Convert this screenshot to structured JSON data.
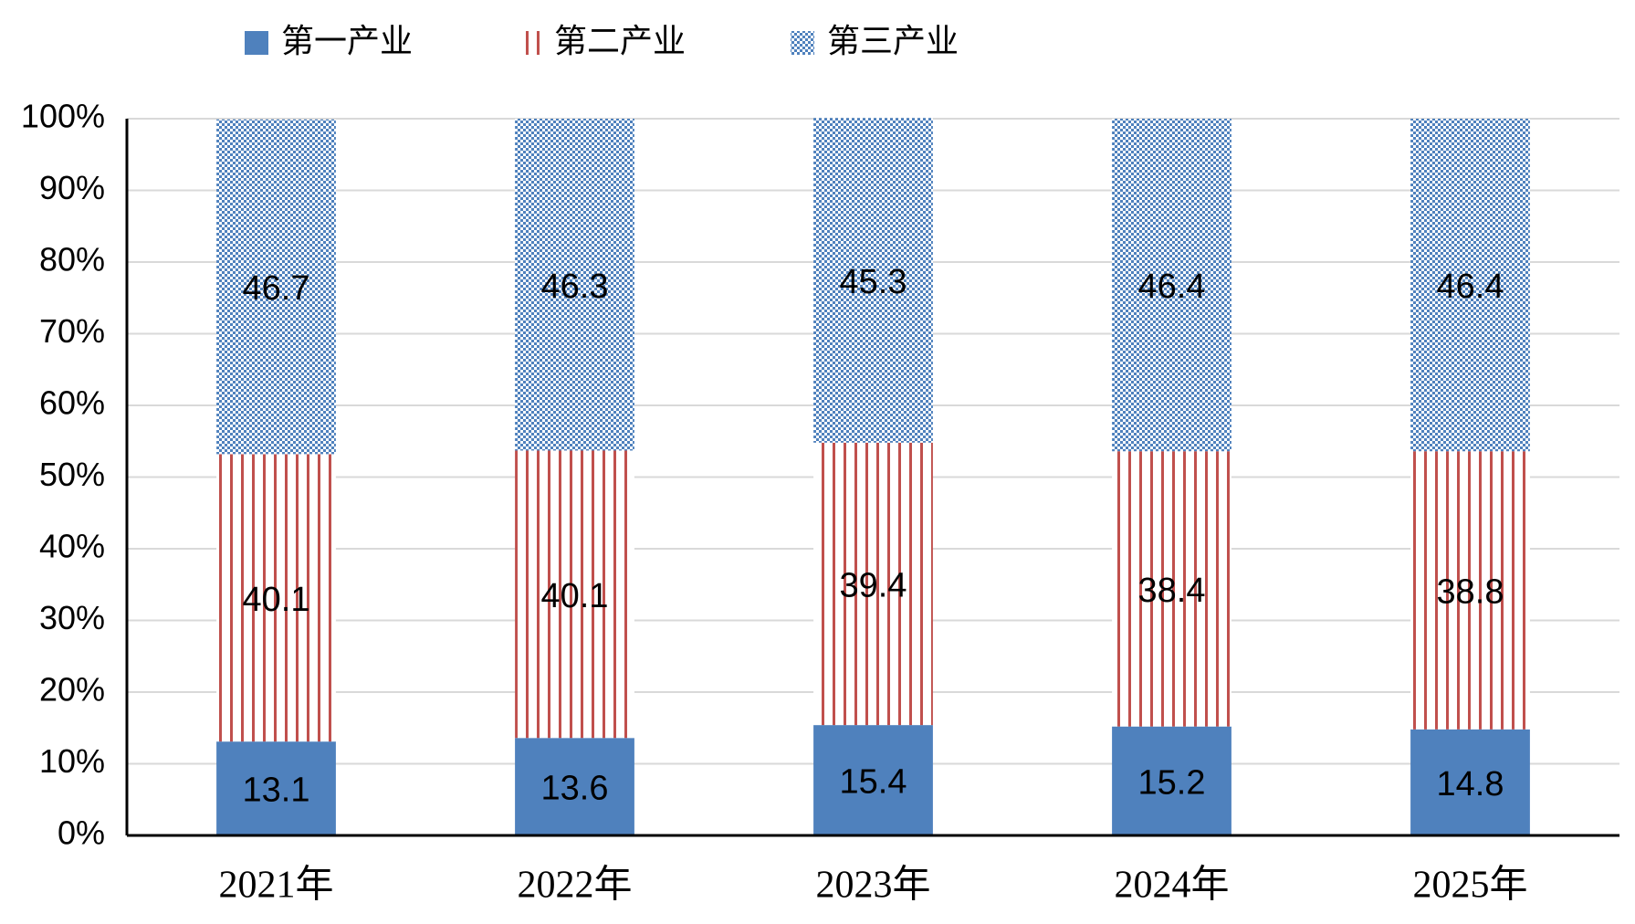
{
  "chart_data": {
    "type": "stacked-bar",
    "categories": [
      "2021年",
      "2022年",
      "2023年",
      "2024年",
      "2025年"
    ],
    "series": [
      {
        "name": "第一产业",
        "color": "#4f81bd",
        "pattern": "solid",
        "values": [
          13.1,
          13.6,
          15.4,
          15.2,
          14.8
        ]
      },
      {
        "name": "第二产业",
        "color": "#c0504d",
        "pattern": "vertical-stripes",
        "values": [
          40.1,
          40.1,
          39.4,
          38.4,
          38.8
        ]
      },
      {
        "name": "第三产业",
        "color": "#4f81bd",
        "pattern": "checker",
        "values": [
          46.7,
          46.3,
          45.3,
          46.4,
          46.4
        ]
      }
    ],
    "ylim": [
      0,
      100
    ],
    "yticks": [
      {
        "value": 0,
        "label": "0%"
      },
      {
        "value": 10,
        "label": "10%"
      },
      {
        "value": 20,
        "label": "20%"
      },
      {
        "value": 30,
        "label": "30%"
      },
      {
        "value": 40,
        "label": "40%"
      },
      {
        "value": 50,
        "label": "50%"
      },
      {
        "value": 60,
        "label": "60%"
      },
      {
        "value": 70,
        "label": "70%"
      },
      {
        "value": 80,
        "label": "80%"
      },
      {
        "value": 90,
        "label": "90%"
      },
      {
        "value": 100,
        "label": "100%"
      }
    ],
    "grid": true,
    "legend": "top"
  }
}
